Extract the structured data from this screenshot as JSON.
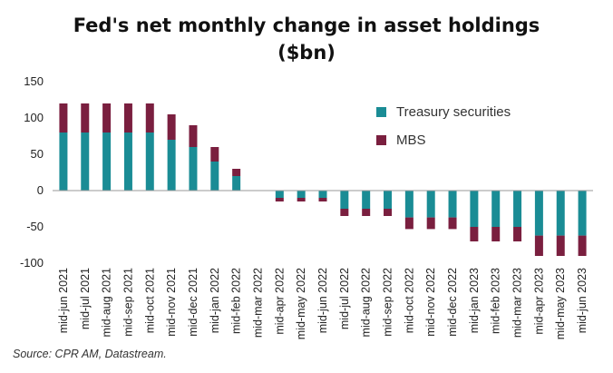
{
  "chart_data": {
    "type": "bar",
    "stacked": true,
    "title_lines": [
      "Fed's net monthly change in asset holdings",
      "($bn)"
    ],
    "categories": [
      "mid-jun 2021",
      "mid-jul 2021",
      "mid-aug 2021",
      "mid-sep 2021",
      "mid-oct 2021",
      "mid-nov 2021",
      "mid-dec 2021",
      "mid-jan 2022",
      "mid-feb 2022",
      "mid-mar 2022",
      "mid-apr 2022",
      "mid-may 2022",
      "mid-jun 2022",
      "mid-jul 2022",
      "mid-aug 2022",
      "mid-sep 2022",
      "mid-oct 2022",
      "mid-nov 2022",
      "mid-dec 2022",
      "mid-jan 2023",
      "mid-feb 2023",
      "mid-mar 2023",
      "mid-apr 2023",
      "mid-may 2023",
      "mid-jun 2023"
    ],
    "series": [
      {
        "name": "Treasury securities",
        "color": "#1a8c95",
        "values": [
          80,
          80,
          80,
          80,
          80,
          70,
          60,
          40,
          20,
          0,
          -10,
          -10,
          -10,
          -25,
          -25,
          -25,
          -37,
          -37,
          -37,
          -50,
          -50,
          -50,
          -62,
          -62,
          -62
        ]
      },
      {
        "name": "MBS",
        "color": "#7a1f3f",
        "values": [
          40,
          40,
          40,
          40,
          40,
          35,
          30,
          20,
          10,
          0,
          -5,
          -5,
          -5,
          -10,
          -10,
          -10,
          -16,
          -16,
          -16,
          -20,
          -20,
          -20,
          -28,
          -28,
          -28
        ]
      }
    ],
    "yticks": [
      150,
      100,
      50,
      0,
      -50,
      -100
    ],
    "ylim": [
      -100,
      150
    ],
    "legend_position": "right",
    "grid": false,
    "xlabel": "",
    "ylabel": ""
  },
  "source": "Source: CPR AM, Datastream."
}
